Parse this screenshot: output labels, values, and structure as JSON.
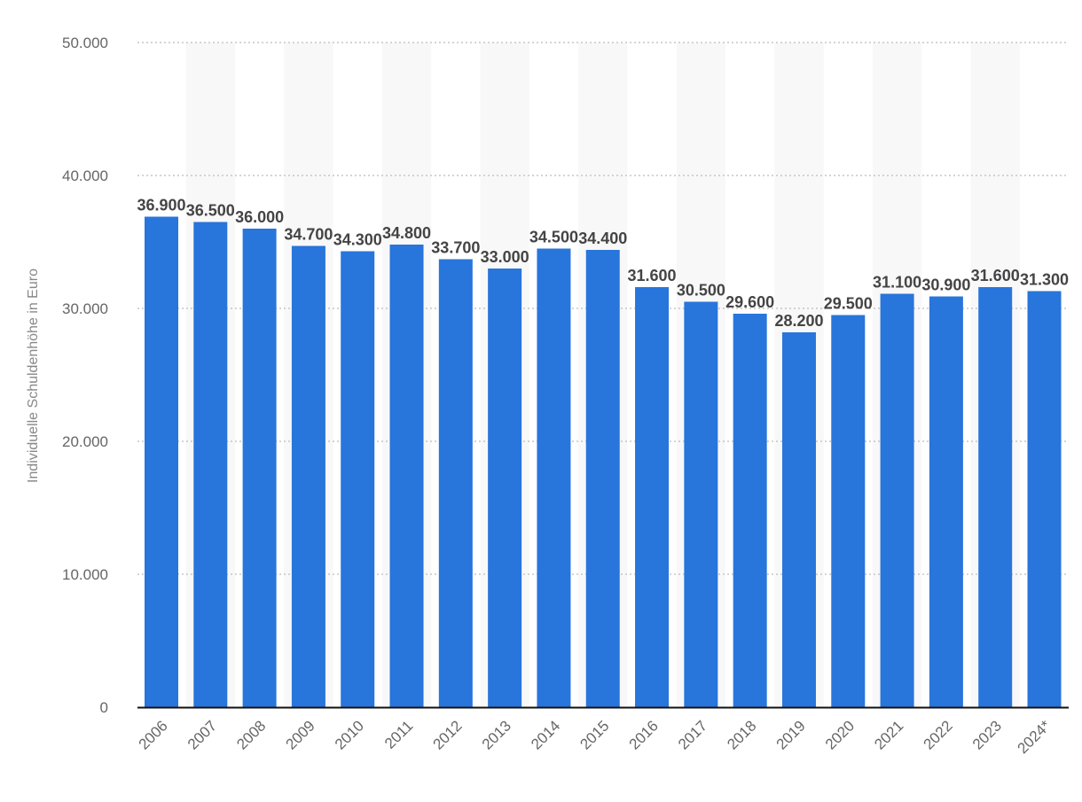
{
  "chart_data": {
    "type": "bar",
    "title": "",
    "xlabel": "",
    "ylabel": "Individuelle Schuldenhöhe in Euro",
    "ylim": [
      0,
      50000
    ],
    "yticks": [
      0,
      10000,
      20000,
      30000,
      40000,
      50000
    ],
    "ytick_labels": [
      "0",
      "10.000",
      "20.000",
      "30.000",
      "40.000",
      "50.000"
    ],
    "categories": [
      "2006",
      "2007",
      "2008",
      "2009",
      "2010",
      "2011",
      "2012",
      "2013",
      "2014",
      "2015",
      "2016",
      "2017",
      "2018",
      "2019",
      "2020",
      "2021",
      "2022",
      "2023",
      "2024*"
    ],
    "values": [
      36900,
      36500,
      36000,
      34700,
      34300,
      34800,
      33700,
      33000,
      34500,
      34400,
      31600,
      30500,
      29600,
      28200,
      29500,
      31100,
      30900,
      31600,
      31300
    ],
    "value_labels": [
      "36.900",
      "36.500",
      "36.000",
      "34.700",
      "34.300",
      "34.800",
      "33.700",
      "33.000",
      "34.500",
      "34.400",
      "31.600",
      "30.500",
      "29.600",
      "28.200",
      "29.500",
      "31.100",
      "30.900",
      "31.600",
      "31.300"
    ],
    "grid": true,
    "bar_color": "#2875dc"
  }
}
